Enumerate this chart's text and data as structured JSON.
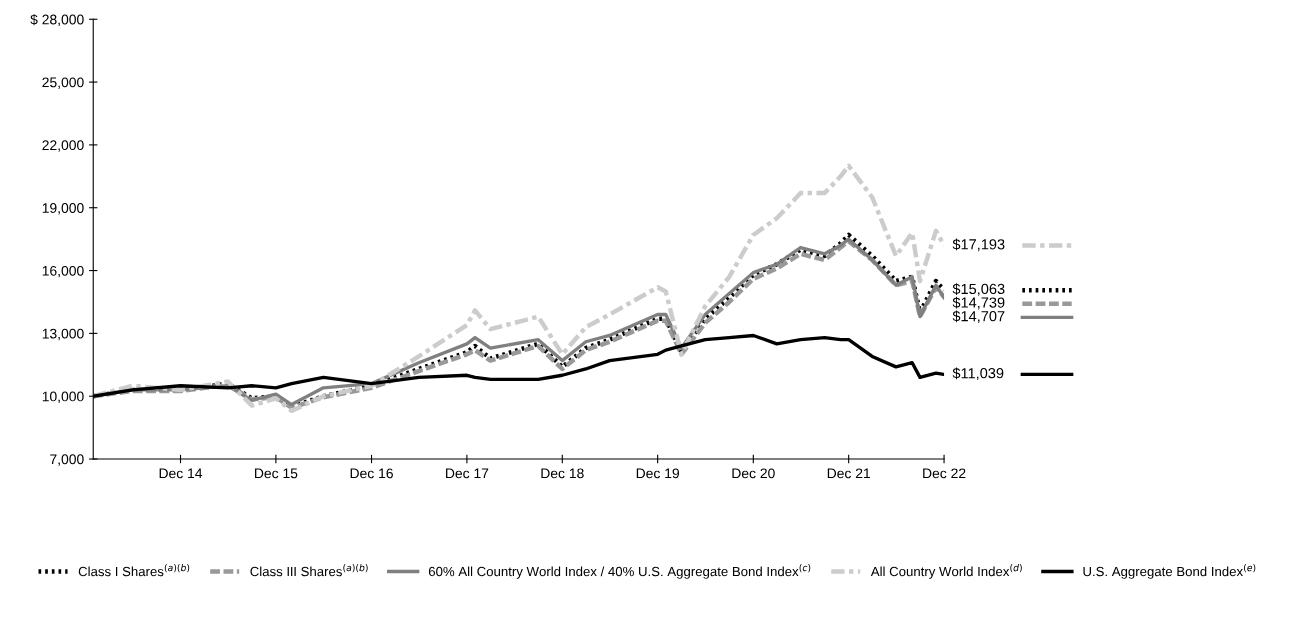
{
  "chart_data": {
    "type": "line",
    "x": [
      "2014-01-31",
      "2014-06-30",
      "2014-12-31",
      "2015-06-30",
      "2015-09-30",
      "2015-12-31",
      "2016-02-29",
      "2016-06-30",
      "2016-12-31",
      "2017-06-30",
      "2017-12-31",
      "2018-01-31",
      "2018-03-31",
      "2018-09-30",
      "2018-12-31",
      "2019-03-31",
      "2019-06-30",
      "2019-12-31",
      "2020-01-31",
      "2020-03-31",
      "2020-06-30",
      "2020-09-30",
      "2020-12-31",
      "2021-03-31",
      "2021-06-30",
      "2021-09-30",
      "2021-11-30",
      "2021-12-31",
      "2022-03-31",
      "2022-06-30",
      "2022-08-31",
      "2022-09-30",
      "2022-11-30",
      "2022-12-31"
    ],
    "series": [
      {
        "name": "Class I Shares$^{(a)(b)}$",
        "color": "#000000",
        "line_style": "dotted",
        "values": [
          10000,
          10300,
          10300,
          10600,
          9900,
          10000,
          9500,
          10000,
          10500,
          11300,
          12100,
          12400,
          11800,
          12500,
          11400,
          12300,
          12700,
          13700,
          13700,
          12100,
          13700,
          14700,
          15800,
          16300,
          17000,
          16700,
          17300,
          17700,
          16700,
          15500,
          15700,
          14000,
          15500,
          15063
        ],
        "value_labels": [
          null,
          null,
          null,
          null,
          null,
          null,
          null,
          null,
          null,
          null,
          null,
          null,
          null,
          null,
          null,
          null,
          null,
          null,
          null,
          null,
          null,
          null,
          null,
          null,
          null,
          null,
          null,
          null,
          null,
          null,
          null,
          null,
          null,
          "$15,063"
        ]
      },
      {
        "name": "Class III Shares$^{(a)(b)}$",
        "color": "#999999",
        "line_style": "dashed",
        "values": [
          10000,
          10250,
          10250,
          10550,
          9850,
          9950,
          9450,
          9950,
          10400,
          11200,
          12000,
          12200,
          11700,
          12400,
          11300,
          12200,
          12600,
          13600,
          13600,
          12000,
          13500,
          14500,
          15600,
          16100,
          16800,
          16500,
          17100,
          17400,
          16500,
          15300,
          15500,
          13800,
          15200,
          14739
        ],
        "value_labels": [
          null,
          null,
          null,
          null,
          null,
          null,
          null,
          null,
          null,
          null,
          null,
          null,
          null,
          null,
          null,
          null,
          null,
          null,
          null,
          null,
          null,
          null,
          null,
          null,
          null,
          null,
          null,
          null,
          null,
          null,
          null,
          null,
          null,
          "$14,739"
        ]
      },
      {
        "name": "60% All Country World Index / 40% U.S. Aggregate Bond Index$^{(c)}$",
        "color": "#808080",
        "line_style": "solid",
        "values": [
          10000,
          10300,
          10300,
          10500,
          9800,
          10100,
          9600,
          10400,
          10600,
          11600,
          12500,
          12800,
          12300,
          12700,
          11700,
          12600,
          12900,
          13900,
          13900,
          12300,
          13900,
          14900,
          15900,
          16300,
          17100,
          16800,
          17200,
          17500,
          16500,
          15300,
          15700,
          13800,
          15300,
          14707
        ],
        "value_labels": [
          null,
          null,
          null,
          null,
          null,
          null,
          null,
          null,
          null,
          null,
          null,
          null,
          null,
          null,
          null,
          null,
          null,
          null,
          null,
          null,
          null,
          null,
          null,
          null,
          null,
          null,
          null,
          null,
          null,
          null,
          null,
          null,
          null,
          "$14,707"
        ]
      },
      {
        "name": "All Country World Index$^{(d)}$",
        "color": "#cccccc",
        "line_style": "dashdot",
        "values": [
          10000,
          10500,
          10300,
          10700,
          9550,
          9900,
          9300,
          10000,
          10500,
          11900,
          13400,
          14100,
          13200,
          13800,
          12000,
          13300,
          13900,
          15200,
          15000,
          12000,
          14300,
          15700,
          17700,
          18500,
          19700,
          19700,
          20500,
          21000,
          19500,
          16700,
          17800,
          15500,
          17900,
          17193
        ],
        "value_labels": [
          null,
          null,
          null,
          null,
          null,
          null,
          null,
          null,
          null,
          null,
          null,
          null,
          null,
          null,
          null,
          null,
          null,
          null,
          null,
          null,
          null,
          null,
          null,
          null,
          null,
          null,
          null,
          null,
          null,
          null,
          null,
          null,
          null,
          "$17,193"
        ]
      },
      {
        "name": "U.S. Aggregate Bond Index$^{(e)}$",
        "color": "#000000",
        "line_style": "solid",
        "values": [
          10000,
          10300,
          10500,
          10400,
          10500,
          10400,
          10600,
          10900,
          10600,
          10900,
          11000,
          10900,
          10800,
          10800,
          11000,
          11300,
          11700,
          12000,
          12200,
          12400,
          12700,
          12800,
          12900,
          12500,
          12700,
          12800,
          12700,
          12700,
          11900,
          11400,
          11600,
          10900,
          11100,
          11039
        ],
        "value_labels": [
          null,
          null,
          null,
          null,
          null,
          null,
          null,
          null,
          null,
          null,
          null,
          null,
          null,
          null,
          null,
          null,
          null,
          null,
          null,
          null,
          null,
          null,
          null,
          null,
          null,
          null,
          null,
          null,
          null,
          null,
          null,
          null,
          null,
          "$11,039"
        ]
      }
    ],
    "xlim": [
      "2014-01-31",
      "2022-12-31"
    ],
    "xticks": [
      {
        "value": "2014-12-31",
        "label": "Dec 14"
      },
      {
        "value": "2015-12-31",
        "label": "Dec 15"
      },
      {
        "value": "2016-12-31",
        "label": "Dec 16"
      },
      {
        "value": "2017-12-31",
        "label": "Dec 17"
      },
      {
        "value": "2018-12-31",
        "label": "Dec 18"
      },
      {
        "value": "2019-12-31",
        "label": "Dec 19"
      },
      {
        "value": "2020-12-31",
        "label": "Dec 20"
      },
      {
        "value": "2021-12-31",
        "label": "Dec 21"
      },
      {
        "value": "2022-12-31",
        "label": "Dec 22"
      }
    ],
    "ylim": [
      7000,
      28000
    ],
    "yticks": [
      {
        "value": 7000,
        "label": "7,000"
      },
      {
        "value": 10000,
        "label": "10,000"
      },
      {
        "value": 13000,
        "label": "13,000"
      },
      {
        "value": 16000,
        "label": "16,000"
      },
      {
        "value": 19000,
        "label": "19,000"
      },
      {
        "value": 22000,
        "label": "22,000"
      },
      {
        "value": 25000,
        "label": "25,000"
      },
      {
        "value": 28000,
        "label": "$ 28,000"
      }
    ],
    "grid": false,
    "legend": "bottom"
  }
}
